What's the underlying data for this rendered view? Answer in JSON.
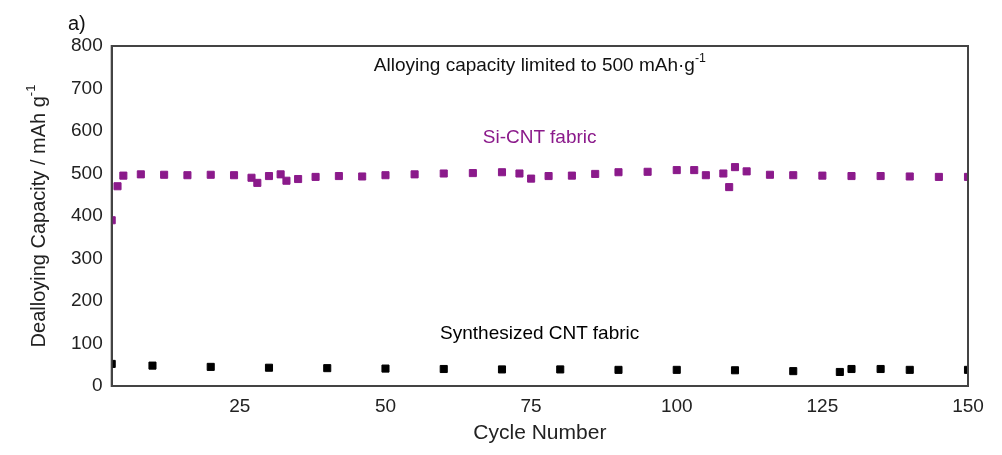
{
  "chart_data": {
    "type": "scatter",
    "title": "a)",
    "xlabel": "Cycle Number",
    "ylabel": "Dealloying Capacity / mAh g$^{-1}$",
    "annotations": [
      "Alloying capacity limited to 500 mAh·g$^{-1}$"
    ],
    "xlim": [
      3,
      150
    ],
    "xticks": [
      25,
      50,
      75,
      100,
      125,
      150
    ],
    "ylim": [
      0,
      800
    ],
    "yticks": [
      0,
      100,
      200,
      300,
      400,
      500,
      600,
      700,
      800
    ],
    "marker": "square",
    "grid": false,
    "legend": false,
    "series": [
      {
        "name": "Si-CNT fabric",
        "color": "#8b1a8b",
        "x": [
          3,
          4,
          5,
          8,
          12,
          16,
          20,
          24,
          27,
          28,
          30,
          32,
          33,
          35,
          38,
          42,
          46,
          50,
          55,
          60,
          65,
          70,
          73,
          75,
          78,
          82,
          86,
          90,
          95,
          100,
          103,
          105,
          108,
          109,
          110,
          112,
          116,
          120,
          125,
          130,
          135,
          140,
          145,
          150
        ],
        "values": [
          390,
          470,
          495,
          498,
          497,
          496,
          497,
          496,
          490,
          478,
          494,
          498,
          483,
          487,
          492,
          494,
          493,
          496,
          498,
          500,
          501,
          503,
          500,
          488,
          494,
          495,
          499,
          503,
          504,
          508,
          508,
          496,
          500,
          468,
          515,
          505,
          497,
          496,
          495,
          494,
          494,
          493,
          492,
          492
        ]
      },
      {
        "name": "Synthesized CNT fabric",
        "color": "#000000",
        "x": [
          3,
          10,
          20,
          30,
          40,
          50,
          60,
          70,
          80,
          90,
          100,
          110,
          120,
          128,
          130,
          135,
          140,
          150
        ],
        "values": [
          52,
          48,
          45,
          43,
          42,
          41,
          40,
          39,
          39,
          38,
          38,
          37,
          35,
          33,
          40,
          40,
          38,
          38
        ]
      }
    ]
  }
}
